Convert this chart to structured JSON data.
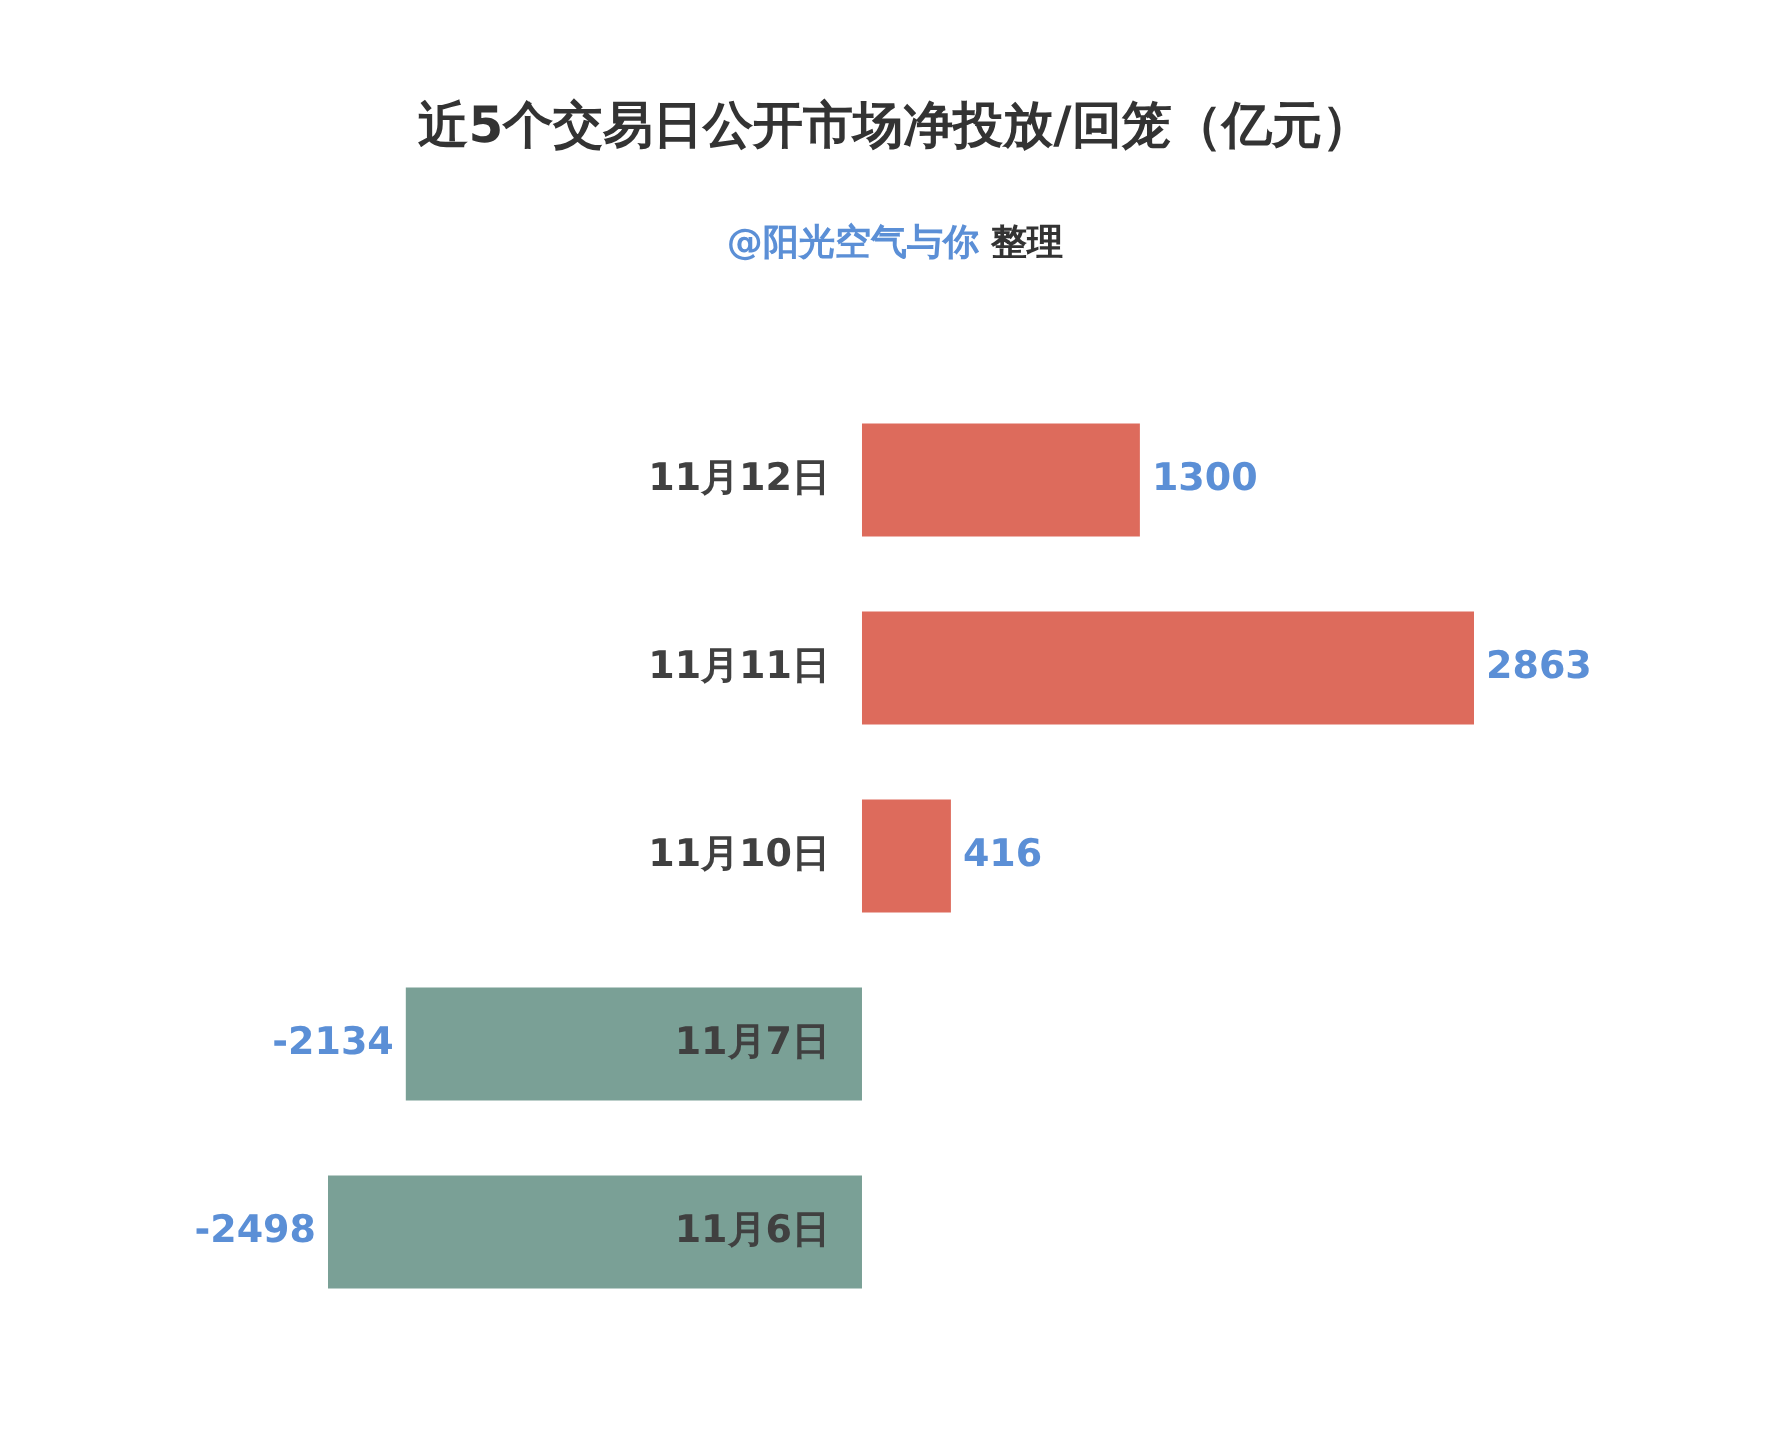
{
  "chart_data": {
    "type": "bar",
    "orientation": "horizontal",
    "title": "近5个交易日公开市场净投放/回笼（亿元）",
    "subtitle": "@阳光空气与你 整理",
    "categories": [
      "11月12日",
      "11月11日",
      "11月10日",
      "11月7日",
      "11月6日"
    ],
    "values": [
      1300,
      2863,
      416,
      -2134,
      -2498
    ],
    "colors": [
      "#dd6b5c",
      "#dd6b5c",
      "#dd6b5c",
      "#7aa096",
      "#7aa096"
    ],
    "data_labels": true,
    "grid": false,
    "legend": false
  }
}
